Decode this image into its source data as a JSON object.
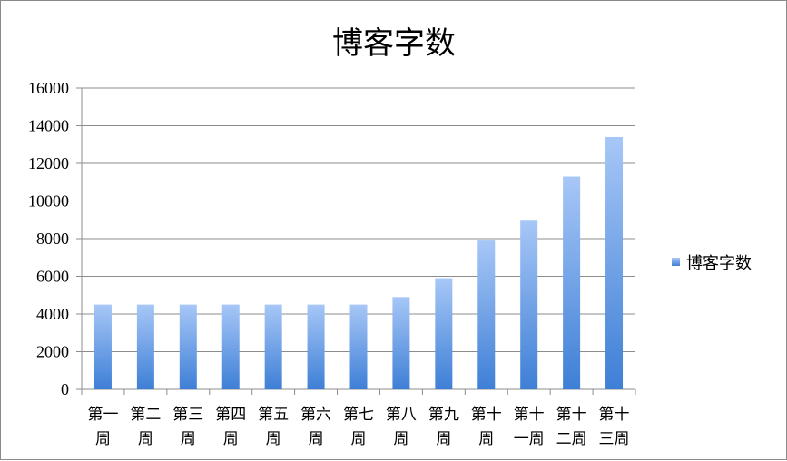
{
  "chart_data": {
    "type": "bar",
    "title": "博客字数",
    "xlabel": "",
    "ylabel": "",
    "categories": [
      "第一周",
      "第二周",
      "第三周",
      "第四周",
      "第五周",
      "第六周",
      "第七周",
      "第八周",
      "第九周",
      "第十周",
      "第十一周",
      "第十二周",
      "第十三周"
    ],
    "category_lines": [
      [
        "第一",
        "周"
      ],
      [
        "第二",
        "周"
      ],
      [
        "第三",
        "周"
      ],
      [
        "第四",
        "周"
      ],
      [
        "第五",
        "周"
      ],
      [
        "第六",
        "周"
      ],
      [
        "第七",
        "周"
      ],
      [
        "第八",
        "周"
      ],
      [
        "第九",
        "周"
      ],
      [
        "第十",
        "周"
      ],
      [
        "第十",
        "一周"
      ],
      [
        "第十",
        "二周"
      ],
      [
        "第十",
        "三周"
      ]
    ],
    "series": [
      {
        "name": "博客字数",
        "values": [
          4500,
          4500,
          4500,
          4500,
          4500,
          4500,
          4500,
          4900,
          5900,
          7900,
          9000,
          11300,
          13400
        ]
      }
    ],
    "ylim": [
      0,
      16000
    ],
    "yticks": [
      0,
      2000,
      4000,
      6000,
      8000,
      10000,
      12000,
      14000,
      16000
    ],
    "grid": true,
    "legend_position": "right",
    "colors": {
      "bar_top": "#a7c7f7",
      "bar_bottom": "#3e7fd6",
      "grid": "#8c8c8c"
    }
  }
}
